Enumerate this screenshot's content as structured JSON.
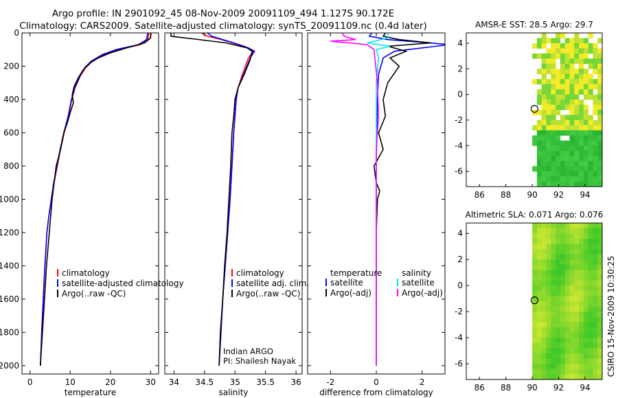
{
  "title_line1": "Argo profile: IN 2901092_45 08-Nov-2009 20091109_494 1.127S 90.172E",
  "title_line2": "Climatology: CARS2009. Satellite-adjusted climatology: synTS_20091109.nc (0.4d later)",
  "side_label": "CSIRO 15-Nov-2009 10:30:25",
  "chart_data": [
    {
      "id": "temperature",
      "type": "line",
      "xlabel": "temperature",
      "xlim": [
        -2,
        32
      ],
      "ylim": [
        2050,
        0
      ],
      "xticks": [
        0,
        10,
        20,
        30
      ],
      "yticks": [
        0,
        200,
        400,
        600,
        800,
        1000,
        1200,
        1400,
        1600,
        1800,
        2000
      ],
      "legend": [
        "climatology",
        "satellite-adjusted climatology",
        "Argo(..raw -QC)"
      ],
      "series": [
        {
          "name": "climatology",
          "color": "#ff0000",
          "x": [
            29.6,
            29.3,
            27.5,
            22.0,
            18.5,
            15.5,
            13.8,
            12.5,
            11.2,
            10.4,
            9.6,
            8.5,
            7.6,
            6.8,
            6.0,
            5.3,
            4.7,
            4.2,
            3.7,
            3.3,
            2.9,
            2.6
          ],
          "y": [
            0,
            40,
            70,
            100,
            130,
            170,
            210,
            260,
            330,
            400,
            500,
            600,
            700,
            800,
            900,
            1000,
            1100,
            1200,
            1400,
            1600,
            1800,
            2000
          ]
        },
        {
          "name": "satellite-adjusted climatology",
          "color": "#0000ff",
          "x": [
            29.3,
            29.0,
            27.0,
            21.5,
            18.0,
            15.2,
            13.6,
            12.4,
            11.1,
            10.3,
            9.5,
            8.4,
            7.5,
            6.7,
            5.9,
            5.3,
            4.7,
            4.2,
            3.7,
            3.3,
            2.9,
            2.6
          ],
          "y": [
            0,
            40,
            70,
            100,
            130,
            170,
            210,
            260,
            330,
            400,
            500,
            600,
            700,
            800,
            900,
            1000,
            1100,
            1200,
            1400,
            1600,
            1800,
            2000
          ]
        },
        {
          "name": "Argo(..raw -QC)",
          "color": "#000000",
          "x": [
            30.1,
            30.0,
            28.5,
            24.0,
            20.0,
            17.0,
            15.0,
            13.3,
            12.0,
            11.0,
            10.5,
            10.8,
            10.0,
            9.3,
            8.4,
            7.6,
            6.5,
            5.5,
            4.8,
            4.1,
            3.6,
            3.1,
            2.7,
            2.6
          ],
          "y": [
            0,
            30,
            60,
            90,
            120,
            150,
            180,
            220,
            270,
            320,
            370,
            420,
            480,
            540,
            600,
            700,
            800,
            1000,
            1200,
            1400,
            1600,
            1800,
            1950,
            2000
          ]
        }
      ]
    },
    {
      "id": "salinity",
      "type": "line",
      "xlabel": "salinity",
      "xlim": [
        33.85,
        36.1
      ],
      "ylim": [
        2050,
        0
      ],
      "xticks": [
        34,
        34.5,
        35,
        35.5,
        36
      ],
      "legend": [
        "climatology",
        "satellite adj. clim.",
        "Argo(..raw -QC)"
      ],
      "annotation": [
        "Indian ARGO",
        "PI: Shailesh Nayak"
      ],
      "series": [
        {
          "name": "climatology",
          "color": "#ff0000",
          "x": [
            34.45,
            34.55,
            34.78,
            35.05,
            35.2,
            35.3,
            35.22,
            35.12,
            35.05,
            35.02,
            35.0,
            34.98,
            34.95,
            34.92,
            34.88,
            34.84,
            34.8,
            34.77,
            34.74
          ],
          "y": [
            0,
            20,
            40,
            70,
            90,
            110,
            150,
            250,
            330,
            400,
            500,
            600,
            800,
            1000,
            1200,
            1400,
            1600,
            1800,
            2000
          ]
        },
        {
          "name": "satellite adj. clim.",
          "color": "#0000ff",
          "x": [
            34.55,
            34.62,
            34.8,
            35.07,
            35.22,
            35.32,
            35.25,
            35.14,
            35.05,
            35.02,
            35.0,
            34.98,
            34.95,
            34.92,
            34.88,
            34.84,
            34.8,
            34.77,
            34.74
          ],
          "y": [
            0,
            20,
            40,
            70,
            90,
            110,
            150,
            250,
            330,
            400,
            500,
            600,
            800,
            1000,
            1200,
            1400,
            1600,
            1800,
            2000
          ]
        },
        {
          "name": "Argo(..raw -QC)",
          "color": "#000000",
          "x": [
            33.95,
            33.95,
            34.3,
            34.85,
            35.2,
            35.28,
            35.25,
            35.15,
            35.05,
            35.0,
            34.98,
            34.95,
            34.93,
            34.9,
            34.87,
            34.83,
            34.8,
            34.76,
            34.74
          ],
          "y": [
            0,
            20,
            35,
            60,
            90,
            110,
            160,
            250,
            330,
            400,
            500,
            600,
            800,
            1000,
            1200,
            1400,
            1600,
            1800,
            2000
          ]
        }
      ]
    },
    {
      "id": "difference",
      "type": "line",
      "xlabel": "difference from climatology",
      "xlim": [
        -3,
        3
      ],
      "ylim": [
        2050,
        0
      ],
      "xticks": [
        -2,
        0,
        2
      ],
      "legend_groups": [
        {
          "heading": "temperature",
          "items": [
            {
              "label": "satellite",
              "color": "#0000ff"
            },
            {
              "label": "Argo(-adj)",
              "color": "#000000"
            }
          ]
        },
        {
          "heading": "salinity",
          "items": [
            {
              "label": "satellite",
              "color": "#00e5ee"
            },
            {
              "label": "Argo(-adj)",
              "color": "#ff00ff"
            }
          ]
        }
      ],
      "series": [
        {
          "name": "temperature satellite",
          "color": "#0000ff",
          "x": [
            -0.2,
            -0.3,
            0.5,
            3.2,
            2.0,
            0.8,
            0.3,
            0.1,
            0.05,
            0.02,
            0.0,
            0.0,
            0.0,
            0.0
          ],
          "y": [
            0,
            20,
            40,
            70,
            90,
            110,
            150,
            250,
            400,
            600,
            800,
            1200,
            1600,
            2000
          ]
        },
        {
          "name": "temperature Argo(-adj)",
          "color": "#000000",
          "x": [
            0.4,
            0.3,
            1.0,
            2.4,
            0.5,
            1.3,
            0.6,
            1.0,
            0.5,
            0.3,
            0.4,
            0.1,
            0.3,
            -0.1,
            0.0,
            0.15,
            0.05,
            0.0,
            0.0,
            0.0
          ],
          "y": [
            0,
            20,
            40,
            60,
            80,
            110,
            150,
            200,
            300,
            400,
            500,
            600,
            700,
            800,
            900,
            950,
            1000,
            1200,
            1600,
            2000
          ]
        },
        {
          "name": "salinity satellite",
          "color": "#00e5ee",
          "x": [
            0.5,
            0.5,
            -0.4,
            0.6,
            0.0,
            0.1,
            0.0,
            0.0,
            0.0,
            0.0,
            0.0
          ],
          "y": [
            0,
            30,
            60,
            80,
            100,
            150,
            300,
            600,
            1000,
            1500,
            2000
          ]
        },
        {
          "name": "salinity Argo(-adj)",
          "color": "#ff00ff",
          "x": [
            -1.5,
            -1.4,
            -0.9,
            -2.0,
            -0.4,
            -0.1,
            0.05,
            0.1,
            0.0,
            0.0,
            0.0,
            0.0
          ],
          "y": [
            0,
            20,
            40,
            50,
            70,
            100,
            300,
            500,
            700,
            1000,
            1500,
            2000
          ]
        }
      ]
    },
    {
      "id": "sst_map",
      "type": "heatmap",
      "title": "AMSR-E SST: 28.5 Argo: 29.7",
      "xlim": [
        85,
        95.3
      ],
      "ylim": [
        -7.2,
        4.8
      ],
      "xticks": [
        86,
        88,
        90,
        92,
        94
      ],
      "yticks": [
        4,
        2,
        0,
        -2,
        -4,
        -6
      ],
      "data_xmin": 90,
      "argo_position": {
        "lon": 90.172,
        "lat": -1.127
      },
      "missing_cells": [
        [
          0,
          0
        ],
        [
          1,
          0
        ],
        [
          3,
          0
        ],
        [
          4,
          0
        ],
        [
          7,
          0
        ],
        [
          8,
          0
        ],
        [
          10,
          0
        ],
        [
          11,
          0
        ],
        [
          13,
          0
        ],
        [
          14,
          0
        ],
        [
          0,
          1
        ],
        [
          6,
          1
        ],
        [
          12,
          1
        ],
        [
          13,
          1
        ],
        [
          3,
          2
        ],
        [
          14,
          2
        ],
        [
          0,
          3
        ],
        [
          1,
          3
        ],
        [
          2,
          3
        ],
        [
          12,
          4
        ],
        [
          0,
          5
        ],
        [
          1,
          5
        ],
        [
          5,
          5
        ],
        [
          0,
          6
        ],
        [
          1,
          6
        ],
        [
          5,
          6
        ],
        [
          9,
          6
        ],
        [
          11,
          6
        ],
        [
          0,
          7
        ],
        [
          12,
          7
        ],
        [
          0,
          8
        ],
        [
          1,
          8
        ],
        [
          3,
          8
        ],
        [
          13,
          8
        ],
        [
          0,
          10
        ],
        [
          1,
          10
        ],
        [
          0,
          11
        ],
        [
          13,
          11
        ],
        [
          0,
          12
        ],
        [
          10,
          12
        ],
        [
          0,
          13
        ],
        [
          11,
          13
        ],
        [
          12,
          13
        ],
        [
          0,
          14
        ],
        [
          1,
          14
        ],
        [
          12,
          14
        ],
        [
          6,
          15
        ],
        [
          7,
          15
        ],
        [
          12,
          15
        ],
        [
          0,
          16
        ],
        [
          1,
          16
        ],
        [
          5,
          16
        ],
        [
          13,
          16
        ],
        [
          0,
          17
        ],
        [
          0,
          19
        ],
        [
          6,
          20
        ],
        [
          7,
          20
        ],
        [
          0,
          22
        ],
        [
          0,
          23
        ],
        [
          0,
          24
        ],
        [
          0,
          25
        ],
        [
          0,
          27
        ],
        [
          0,
          28
        ],
        [
          0,
          29
        ]
      ]
    },
    {
      "id": "sla_map",
      "type": "heatmap",
      "title": "Altimetric SLA: 0.071 Argo: 0.076",
      "xlim": [
        85,
        95.3
      ],
      "ylim": [
        -7.2,
        4.8
      ],
      "xticks": [
        86,
        88,
        90,
        92,
        94
      ],
      "yticks": [
        4,
        2,
        0,
        -2,
        -4,
        -6
      ],
      "data_xmin": 90,
      "argo_position": {
        "lon": 90.172,
        "lat": -1.127
      }
    }
  ]
}
